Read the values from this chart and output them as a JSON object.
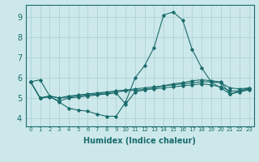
{
  "xlabel": "Humidex (Indice chaleur)",
  "bg_color": "#cce8ea",
  "grid_color": "#aacdd0",
  "line_color": "#1a6b6b",
  "xlim": [
    -0.5,
    23.5
  ],
  "ylim": [
    3.6,
    9.6
  ],
  "yticks": [
    4,
    5,
    6,
    7,
    8,
    9
  ],
  "xtick_labels": [
    "0",
    "1",
    "2",
    "3",
    "4",
    "5",
    "6",
    "7",
    "8",
    "9",
    "10",
    "11",
    "12",
    "13",
    "14",
    "15",
    "16",
    "17",
    "18",
    "19",
    "20",
    "21",
    "22",
    "23"
  ],
  "lines": [
    {
      "x": [
        0,
        1,
        2,
        3,
        4,
        5,
        6,
        7,
        8,
        9,
        10,
        11,
        12,
        13,
        14,
        15,
        16,
        17,
        18,
        19,
        20,
        21,
        22,
        23
      ],
      "y": [
        5.8,
        5.9,
        5.1,
        4.8,
        4.5,
        4.4,
        4.35,
        4.2,
        4.1,
        4.1,
        4.8,
        6.0,
        6.6,
        7.5,
        9.1,
        9.25,
        8.85,
        7.4,
        6.5,
        5.8,
        5.5,
        5.2,
        5.3,
        5.4
      ]
    },
    {
      "x": [
        0,
        1,
        2,
        3,
        4,
        5,
        6,
        7,
        8,
        9,
        10,
        11,
        12,
        13,
        14,
        15,
        16,
        17,
        18,
        19,
        20,
        21,
        22,
        23
      ],
      "y": [
        5.8,
        5.0,
        5.05,
        4.85,
        5.0,
        5.05,
        5.1,
        5.15,
        5.2,
        5.25,
        4.7,
        5.3,
        5.4,
        5.5,
        5.6,
        5.7,
        5.75,
        5.85,
        5.9,
        5.85,
        5.8,
        5.2,
        5.35,
        5.5
      ]
    },
    {
      "x": [
        0,
        1,
        2,
        3,
        4,
        5,
        6,
        7,
        8,
        9,
        10,
        11,
        12,
        13,
        14,
        15,
        16,
        17,
        18,
        19,
        20,
        21,
        22,
        23
      ],
      "y": [
        5.8,
        5.0,
        5.1,
        5.0,
        5.1,
        5.15,
        5.2,
        5.25,
        5.3,
        5.35,
        5.4,
        5.45,
        5.5,
        5.55,
        5.6,
        5.65,
        5.7,
        5.75,
        5.8,
        5.8,
        5.75,
        5.5,
        5.45,
        5.5
      ]
    },
    {
      "x": [
        0,
        1,
        2,
        3,
        4,
        5,
        6,
        7,
        8,
        9,
        10,
        11,
        12,
        13,
        14,
        15,
        16,
        17,
        18,
        19,
        20,
        21,
        22,
        23
      ],
      "y": [
        5.8,
        5.0,
        5.1,
        5.0,
        5.05,
        5.1,
        5.15,
        5.2,
        5.25,
        5.3,
        5.35,
        5.38,
        5.42,
        5.45,
        5.5,
        5.55,
        5.6,
        5.65,
        5.7,
        5.65,
        5.55,
        5.35,
        5.35,
        5.45
      ]
    }
  ]
}
